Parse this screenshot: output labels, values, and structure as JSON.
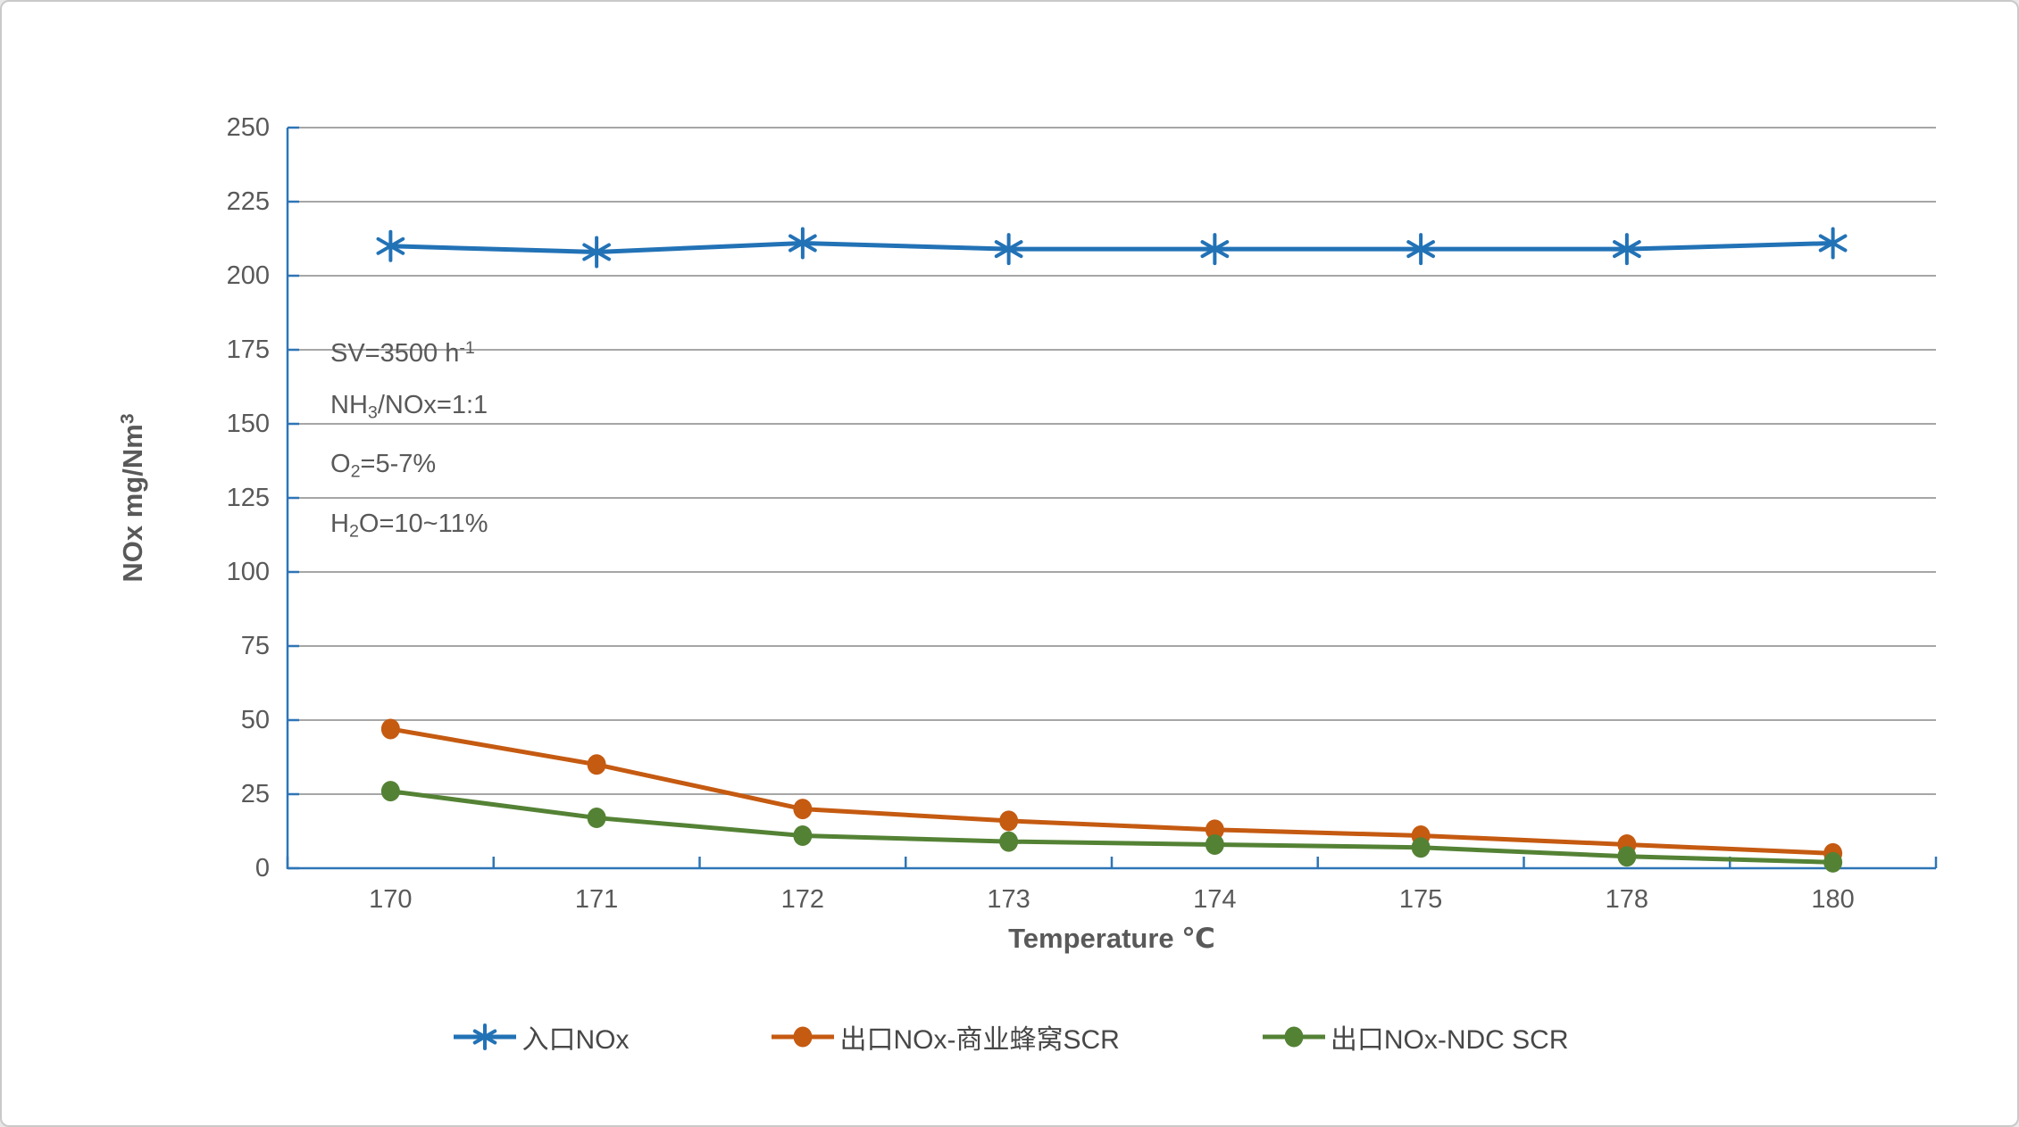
{
  "chart_data": {
    "type": "line",
    "categories": [
      "170",
      "171",
      "172",
      "173",
      "174",
      "175",
      "178",
      "180"
    ],
    "series": [
      {
        "name": "入口NOx",
        "color": "#2272B6",
        "marker": "asterisk",
        "values": [
          210,
          208,
          211,
          209,
          209,
          209,
          209,
          211
        ]
      },
      {
        "name": "出口NOx-商业蜂窝SCR",
        "color": "#C55A11",
        "marker": "circle",
        "values": [
          47,
          35,
          20,
          16,
          13,
          11,
          8,
          5
        ]
      },
      {
        "name": "出口NOx-NDC SCR",
        "color": "#548235",
        "marker": "circle",
        "values": [
          26,
          17,
          11,
          9,
          8,
          7,
          4,
          2
        ]
      }
    ],
    "xlabel": "Temperature  ℃",
    "ylabel_segments": [
      {
        "text": "NOx mg/Nm"
      },
      {
        "text": "3",
        "script": "sup"
      }
    ],
    "ylim": [
      0,
      250
    ],
    "ytick_step": 25,
    "yticks": [
      "0",
      "25",
      "50",
      "75",
      "100",
      "125",
      "150",
      "175",
      "200",
      "225",
      "250"
    ],
    "grid": "horizontal",
    "legend_position": "bottom",
    "annotations": [
      [
        {
          "text": "SV=3500 h"
        },
        {
          "text": "-1",
          "script": "sup"
        }
      ],
      [
        {
          "text": "NH"
        },
        {
          "text": "3",
          "script": "sub"
        },
        {
          "text": "/NOx=1:1"
        }
      ],
      [
        {
          "text": "O"
        },
        {
          "text": "2",
          "script": "sub"
        },
        {
          "text": "=5-7%"
        }
      ],
      [
        {
          "text": "H"
        },
        {
          "text": "2",
          "script": "sub"
        },
        {
          "text": "O=10~11%"
        }
      ]
    ]
  },
  "colors": {
    "axis": "#2E75B6",
    "gridline": "#A6A6A6",
    "tick_label": "#595959",
    "text": "#595959",
    "legend_text": "#474747",
    "background": "#FFFFFF",
    "border": "#C9C9C9"
  }
}
